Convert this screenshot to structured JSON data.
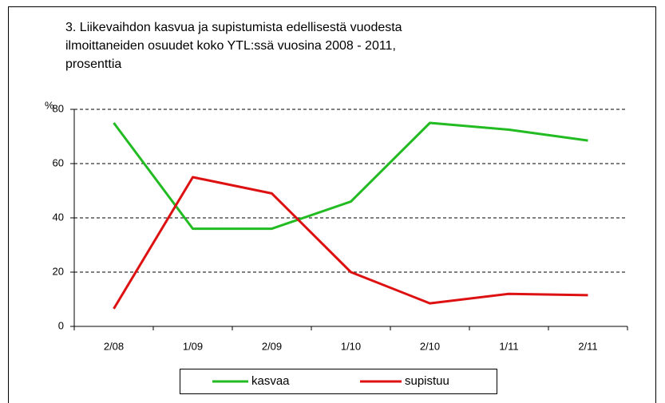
{
  "chart_data": {
    "type": "line",
    "title": [
      "3. Liikevaihdon kasvua ja supistumista edellisestä vuodesta",
      "ilmoittaneiden osuudet koko YTL:ssä vuosina 2008 - 2011,",
      "prosenttia"
    ],
    "y_label": "%",
    "categories": [
      "2/08",
      "1/09",
      "2/09",
      "1/10",
      "2/10",
      "1/11",
      "2/11"
    ],
    "series": [
      {
        "name": "kasvaa",
        "color": "#22bb22",
        "values": [
          75,
          36,
          36,
          46,
          75,
          72.5,
          68.5
        ]
      },
      {
        "name": "supistuu",
        "color": "#dd1111",
        "values": [
          6.5,
          55,
          49,
          20,
          8.5,
          12,
          11.5
        ]
      }
    ],
    "ylim": [
      0,
      80
    ],
    "yticks": [
      0,
      20,
      40,
      60,
      80
    ],
    "grid": true,
    "legend": "bottom"
  }
}
